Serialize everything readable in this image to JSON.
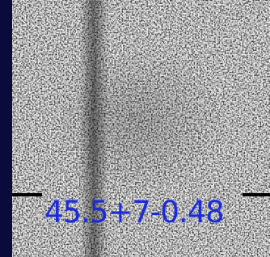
{
  "label": "45.5+7-0.48"
}
